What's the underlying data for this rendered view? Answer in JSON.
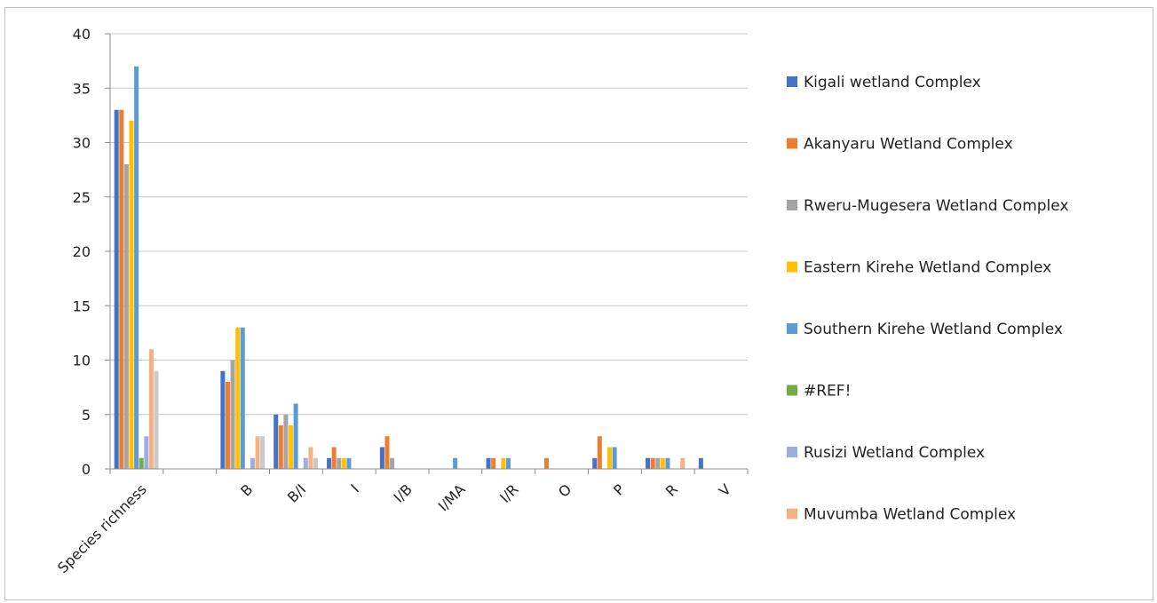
{
  "chart_data": {
    "type": "bar",
    "categories": [
      "Species richness",
      "",
      "B",
      "B/I",
      "I",
      "I/B",
      "I/MA",
      "I/R",
      "O",
      "P",
      "R",
      "V"
    ],
    "ylim": [
      0,
      40
    ],
    "yticks": [
      0,
      5,
      10,
      15,
      20,
      25,
      30,
      35,
      40
    ],
    "grid": true,
    "legend_position": "right",
    "series": [
      {
        "name": "Kigali wetland Complex",
        "color": "#4472c4",
        "values": [
          33,
          0,
          9,
          5,
          1,
          2,
          0,
          1,
          0,
          1,
          1,
          1
        ]
      },
      {
        "name": "Akanyaru Wetland Complex",
        "color": "#ed7d31",
        "values": [
          33,
          0,
          8,
          4,
          2,
          3,
          0,
          1,
          1,
          3,
          1,
          0
        ]
      },
      {
        "name": "Rweru-Mugesera Wetland Complex",
        "color": "#a5a5a5",
        "values": [
          28,
          0,
          10,
          5,
          1,
          1,
          0,
          0,
          0,
          0,
          1,
          0
        ]
      },
      {
        "name": "Eastern Kirehe Wetland Complex",
        "color": "#ffc000",
        "values": [
          32,
          0,
          13,
          4,
          1,
          0,
          0,
          1,
          0,
          2,
          1,
          0
        ]
      },
      {
        "name": "Southern Kirehe Wetland Complex",
        "color": "#5b9bd5",
        "values": [
          37,
          0,
          13,
          6,
          1,
          0,
          1,
          1,
          0,
          2,
          1,
          0
        ]
      },
      {
        "name": "#REF!",
        "color": "#70ad47",
        "values": [
          1,
          0,
          0,
          0,
          0,
          0,
          0,
          0,
          0,
          0,
          0,
          0
        ]
      },
      {
        "name": "Rusizi  Wetland Complex",
        "color": "#9dade0",
        "values": [
          3,
          0,
          1,
          1,
          0,
          0,
          0,
          0,
          0,
          0,
          0,
          0
        ]
      },
      {
        "name": "Muvumba Wetland Complex",
        "color": "#f4b183",
        "values": [
          11,
          0,
          3,
          2,
          0,
          0,
          0,
          0,
          0,
          0,
          1,
          0
        ]
      },
      {
        "name": "",
        "color": "#c9c9c9",
        "values": [
          9,
          0,
          3,
          1,
          0,
          0,
          0,
          0,
          0,
          0,
          0,
          0
        ]
      }
    ]
  }
}
